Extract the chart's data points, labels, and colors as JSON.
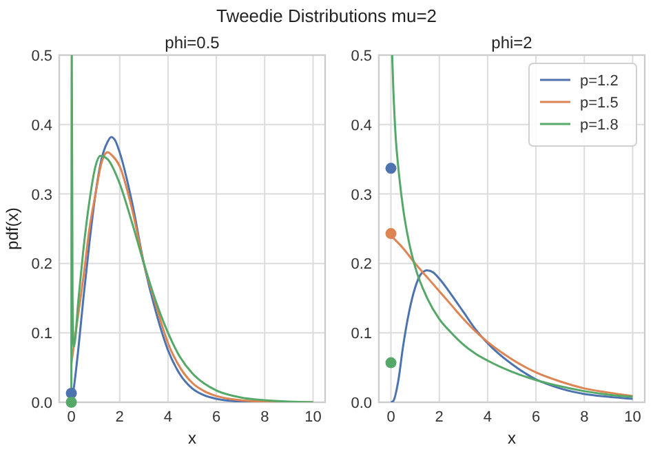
{
  "chart_data": [
    {
      "type": "line",
      "title": "Tweedie Distributions mu=2",
      "subtitle": "phi=0.5",
      "xlabel": "x",
      "ylabel": "pdf(x)",
      "xlim": [
        -0.5,
        10.5
      ],
      "ylim": [
        0,
        0.5
      ],
      "xticks": [
        0,
        2,
        4,
        6,
        8,
        10
      ],
      "yticks": [
        {
          "value": 0,
          "label": "0.0"
        },
        0.1,
        0.2,
        0.3,
        0.4,
        0.5
      ],
      "grid": true,
      "legend": false,
      "series": [
        {
          "color": "#4c72b0",
          "x": [
            0,
            0.1,
            0.3,
            0.5,
            0.75,
            1,
            1.25,
            1.5,
            1.65,
            1.8,
            2,
            2.5,
            3,
            3.5,
            4,
            4.5,
            5,
            5.5,
            6,
            7,
            8
          ],
          "values": [
            0,
            0.02,
            0.08,
            0.15,
            0.23,
            0.3,
            0.35,
            0.375,
            0.382,
            0.378,
            0.36,
            0.29,
            0.2,
            0.13,
            0.075,
            0.04,
            0.02,
            0.01,
            0.005,
            0.001,
            0
          ]
        },
        {
          "color": "#dd8452",
          "x": [
            0,
            0.1,
            0.3,
            0.5,
            0.75,
            1,
            1.25,
            1.5,
            1.7,
            2,
            2.5,
            3,
            3.5,
            4,
            4.5,
            5,
            5.5,
            6,
            7,
            8,
            9,
            10
          ],
          "values": [
            0.055,
            0.08,
            0.13,
            0.18,
            0.25,
            0.3,
            0.345,
            0.36,
            0.355,
            0.34,
            0.28,
            0.2,
            0.14,
            0.085,
            0.05,
            0.028,
            0.016,
            0.009,
            0.003,
            0.001,
            0,
            0
          ]
        },
        {
          "color": "#55a868",
          "x": [
            0,
            0.02,
            0.05,
            0.1,
            0.3,
            0.5,
            0.75,
            1,
            1.2,
            1.5,
            2,
            2.5,
            3,
            3.5,
            4,
            4.5,
            5,
            5.5,
            6,
            7,
            8,
            9,
            10
          ],
          "values": [
            0,
            0.5,
            0.15,
            0.08,
            0.15,
            0.22,
            0.29,
            0.34,
            0.355,
            0.35,
            0.315,
            0.26,
            0.2,
            0.145,
            0.1,
            0.065,
            0.042,
            0.027,
            0.017,
            0.007,
            0.003,
            0.001,
            0
          ]
        },
        {
          "type": "scatter",
          "marker": "circle",
          "color": "#4c72b0",
          "x": [
            0
          ],
          "values": [
            0.013
          ]
        },
        {
          "type": "scatter",
          "marker": "circle",
          "color": "#55a868",
          "x": [
            0
          ],
          "values": [
            0
          ]
        }
      ]
    },
    {
      "type": "line",
      "title": "phi=2",
      "xlabel": "x",
      "xlim": [
        -0.5,
        10.5
      ],
      "ylim": [
        0,
        0.5
      ],
      "xticks": [
        0,
        2,
        4,
        6,
        8,
        10
      ],
      "yticks": [
        {
          "value": 0,
          "label": "0.0"
        },
        0.1,
        0.2,
        0.3,
        0.4,
        0.5
      ],
      "grid": true,
      "legend": "top right",
      "series": [
        {
          "name": "p=1.2",
          "color": "#4c72b0",
          "x": [
            0,
            0.1,
            0.3,
            0.5,
            0.75,
            1,
            1.25,
            1.5,
            1.75,
            2,
            2.5,
            3,
            3.5,
            4,
            5,
            6,
            7,
            8,
            9,
            10
          ],
          "values": [
            0,
            0.002,
            0.03,
            0.08,
            0.13,
            0.165,
            0.185,
            0.19,
            0.187,
            0.178,
            0.155,
            0.13,
            0.105,
            0.085,
            0.055,
            0.033,
            0.02,
            0.012,
            0.008,
            0.005
          ]
        },
        {
          "name": "p=1.5",
          "color": "#dd8452",
          "x": [
            0,
            0.5,
            1,
            1.5,
            2,
            2.5,
            3,
            3.5,
            4,
            5,
            6,
            7,
            8,
            9,
            10
          ],
          "values": [
            0.24,
            0.222,
            0.2,
            0.18,
            0.16,
            0.14,
            0.12,
            0.102,
            0.087,
            0.062,
            0.043,
            0.03,
            0.02,
            0.014,
            0.009
          ]
        },
        {
          "name": "p=1.8",
          "color": "#55a868",
          "x": [
            0.05,
            0.1,
            0.2,
            0.3,
            0.5,
            0.75,
            1,
            1.5,
            2,
            2.5,
            3,
            3.5,
            4,
            5,
            6,
            7,
            8,
            9,
            10
          ],
          "values": [
            0.5,
            0.45,
            0.38,
            0.34,
            0.28,
            0.23,
            0.195,
            0.15,
            0.12,
            0.1,
            0.083,
            0.07,
            0.06,
            0.044,
            0.032,
            0.023,
            0.016,
            0.011,
            0.008
          ]
        },
        {
          "type": "scatter",
          "marker": "circle",
          "color": "#4c72b0",
          "x": [
            0
          ],
          "values": [
            0.337
          ]
        },
        {
          "type": "scatter",
          "marker": "circle",
          "color": "#dd8452",
          "x": [
            0
          ],
          "values": [
            0.243
          ]
        },
        {
          "type": "scatter",
          "marker": "circle",
          "color": "#55a868",
          "x": [
            0
          ],
          "values": [
            0.057
          ]
        }
      ]
    }
  ]
}
